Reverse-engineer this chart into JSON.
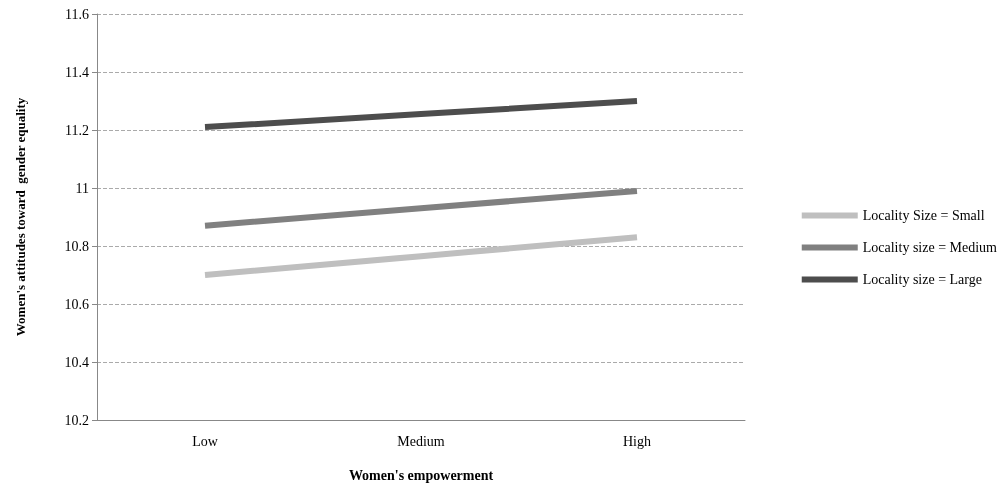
{
  "chart_data": {
    "type": "line",
    "xlabel": "Women's empowerment",
    "ylabel": "Women's attitudes toward  gender equality",
    "categories": [
      "Low",
      "Medium",
      "High"
    ],
    "series": [
      {
        "name": "Locality Size = Small",
        "color": "#bfbfbf",
        "values": [
          10.7,
          10.765,
          10.83
        ]
      },
      {
        "name": "Locality size = Medium",
        "color": "#808080",
        "values": [
          10.87,
          10.93,
          10.99
        ]
      },
      {
        "name": "Locality size = Large",
        "color": "#4d4d4d",
        "values": [
          11.21,
          11.255,
          11.3
        ]
      }
    ],
    "ylim": [
      10.2,
      11.6
    ],
    "yticks": [
      10.2,
      10.4,
      10.6,
      10.8,
      11,
      11.2,
      11.4,
      11.6
    ],
    "grid": "y",
    "legend": "right",
    "marker": "none",
    "line_style": "solid"
  }
}
